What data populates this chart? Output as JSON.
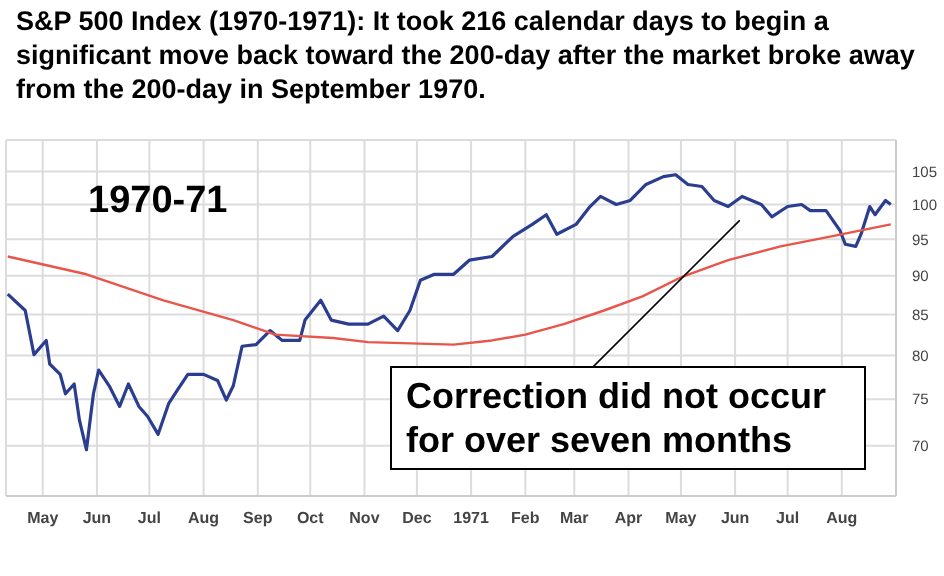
{
  "chart_data": {
    "type": "line",
    "title": "S&P 500 Index (1970-1971):  It took 216 calendar days to begin a significant move back toward the 200-day after the market broke away from the 200-day in September 1970.",
    "annotations": [
      "1970-71",
      "Correction did not occur for over seven months"
    ],
    "series": [
      {
        "color": "#2b3d8f",
        "x": [
          "1970-04-11",
          "1970-04-21",
          "1970-04-26",
          "1970-05-03",
          "1970-05-05",
          "1970-05-11",
          "1970-05-14",
          "1970-05-19",
          "1970-05-22",
          "1970-05-26",
          "1970-05-30",
          "1970-06-02",
          "1970-06-08",
          "1970-06-14",
          "1970-06-19",
          "1970-06-25",
          "1970-06-30",
          "1970-07-06",
          "1970-07-12",
          "1970-07-17",
          "1970-07-23",
          "1970-08-01",
          "1970-08-09",
          "1970-08-14",
          "1970-08-18",
          "1970-08-23",
          "1970-08-31",
          "1970-09-08",
          "1970-09-15",
          "1970-09-25",
          "1970-09-28",
          "1970-10-07",
          "1970-10-13",
          "1970-10-23",
          "1970-11-03",
          "1970-11-12",
          "1970-11-20",
          "1970-11-27",
          "1970-12-03",
          "1970-12-11",
          "1970-12-22",
          "1970-12-31",
          "1971-01-13",
          "1971-01-25",
          "1971-02-05",
          "1971-02-13",
          "1971-02-19",
          "1971-03-02",
          "1971-03-10",
          "1971-03-16",
          "1971-03-25",
          "1971-04-02",
          "1971-04-11",
          "1971-04-21",
          "1971-04-28",
          "1971-05-05",
          "1971-05-13",
          "1971-05-20",
          "1971-05-28",
          "1971-06-05",
          "1971-06-16",
          "1971-06-22",
          "1971-07-01",
          "1971-07-09",
          "1971-07-14",
          "1971-07-23",
          "1971-07-31",
          "1971-08-03",
          "1971-08-09",
          "1971-08-12",
          "1971-08-17",
          "1971-08-20",
          "1971-08-26",
          "1971-08-29"
        ],
        "values": [
          87.6,
          85.5,
          80.1,
          81.8,
          79.0,
          77.8,
          75.6,
          76.7,
          72.7,
          69.6,
          75.6,
          78.3,
          76.5,
          74.2,
          76.7,
          74.2,
          73.1,
          71.2,
          74.5,
          76.0,
          77.8,
          77.8,
          77.1,
          74.9,
          76.5,
          81.1,
          81.3,
          83.0,
          81.8,
          81.8,
          84.3,
          86.8,
          84.3,
          83.8,
          83.8,
          84.8,
          83.0,
          85.5,
          89.4,
          90.2,
          90.2,
          92.1,
          92.6,
          95.4,
          97.1,
          98.5,
          95.7,
          97.1,
          99.7,
          101.2,
          100.0,
          100.6,
          103.0,
          104.2,
          104.5,
          103.0,
          102.7,
          100.6,
          99.7,
          101.2,
          100.0,
          98.2,
          99.7,
          100.0,
          99.1,
          99.1,
          96.2,
          94.3,
          94.0,
          95.7,
          99.7,
          98.5,
          100.6,
          100.0
        ]
      },
      {
        "color": "#e8554a",
        "x": [
          "1970-04-11",
          "1970-05-26",
          "1970-07-09",
          "1970-08-18",
          "1970-09-11",
          "1970-10-14",
          "1970-11-03",
          "1970-12-22",
          "1971-01-13",
          "1971-02-01",
          "1971-02-23",
          "1971-03-18",
          "1971-04-09",
          "1971-05-02",
          "1971-05-28",
          "1971-06-27",
          "1971-07-26",
          "1971-08-29"
        ],
        "values": [
          92.6,
          90.2,
          86.8,
          84.3,
          82.5,
          82.1,
          81.6,
          81.3,
          81.8,
          82.5,
          83.8,
          85.5,
          87.3,
          89.9,
          92.1,
          94.0,
          95.4,
          97.1
        ]
      }
    ],
    "xlim": [
      "1970-04-10",
      "1971-09-01"
    ],
    "xticks": [
      {
        "value": "1970-05-01",
        "label": "May"
      },
      {
        "value": "1970-06-01",
        "label": "Jun"
      },
      {
        "value": "1970-07-01",
        "label": "Jul"
      },
      {
        "value": "1970-08-01",
        "label": "Aug"
      },
      {
        "value": "1970-09-01",
        "label": "Sep"
      },
      {
        "value": "1970-10-01",
        "label": "Oct"
      },
      {
        "value": "1970-11-01",
        "label": "Nov"
      },
      {
        "value": "1970-12-01",
        "label": "Dec"
      },
      {
        "value": "1971-01-01",
        "label": "1971"
      },
      {
        "value": "1971-02-01",
        "label": "Feb"
      },
      {
        "value": "1971-03-01",
        "label": "Mar"
      },
      {
        "value": "1971-04-01",
        "label": "Apr"
      },
      {
        "value": "1971-05-01",
        "label": "May"
      },
      {
        "value": "1971-06-01",
        "label": "Jun"
      },
      {
        "value": "1971-07-01",
        "label": "Jul"
      },
      {
        "value": "1971-08-01",
        "label": "Aug"
      }
    ],
    "ylim": [
      65,
      110
    ],
    "yticks": [
      70,
      75,
      80,
      85,
      90,
      95,
      100,
      105
    ],
    "log": true,
    "grid": true,
    "marker": "none",
    "line_style": "solid"
  }
}
